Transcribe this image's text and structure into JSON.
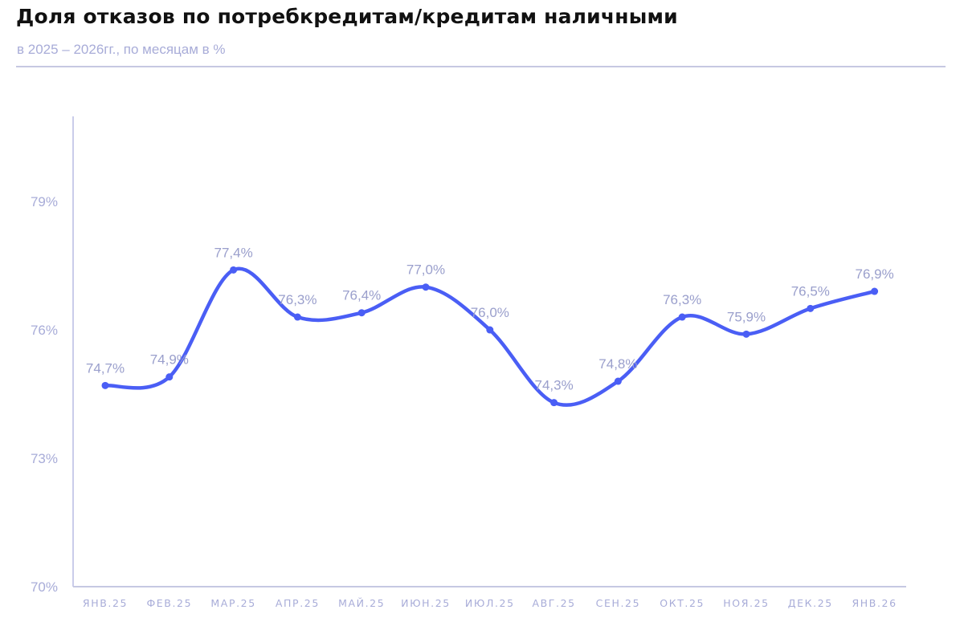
{
  "header": {
    "title": "Доля отказов по потребкредитам/кредитам наличными",
    "subtitle": "в 2025 – 2026гг., по месяцам в %"
  },
  "colors": {
    "line": "#4a5ef5",
    "axis": "#b9bce4",
    "text_muted": "#a8acd8"
  },
  "chart_data": {
    "type": "line",
    "title": "Доля отказов по потребкредитам/кредитам наличными",
    "subtitle": "в 2025 – 2026гг., по месяцам в %",
    "xlabel": "",
    "ylabel": "",
    "categories": [
      "ЯНВ.25",
      "ФЕВ.25",
      "МАР.25",
      "АПР.25",
      "МАЙ.25",
      "ИЮН.25",
      "ИЮЛ.25",
      "АВГ.25",
      "СЕН.25",
      "ОКТ.25",
      "НОЯ.25",
      "ДЕК.25",
      "ЯНВ.26"
    ],
    "series": [
      {
        "name": "Доля отказов, %",
        "values": [
          74.7,
          74.9,
          77.4,
          76.3,
          76.4,
          77.0,
          76.0,
          74.3,
          74.8,
          76.3,
          75.9,
          76.5,
          76.9
        ]
      }
    ],
    "data_labels": [
      "74,7%",
      "74,9%",
      "77,4%",
      "76,3%",
      "76,4%",
      "77,0%",
      "76,0%",
      "74,3%",
      "74,8%",
      "76,3%",
      "75,9%",
      "76,5%",
      "76,9%"
    ],
    "y_ticks": [
      70,
      73,
      76,
      79
    ],
    "y_tick_labels": [
      "70%",
      "73%",
      "76%",
      "79%"
    ],
    "ylim": [
      70,
      81
    ],
    "grid": false,
    "legend": "none",
    "smoothed": true
  }
}
